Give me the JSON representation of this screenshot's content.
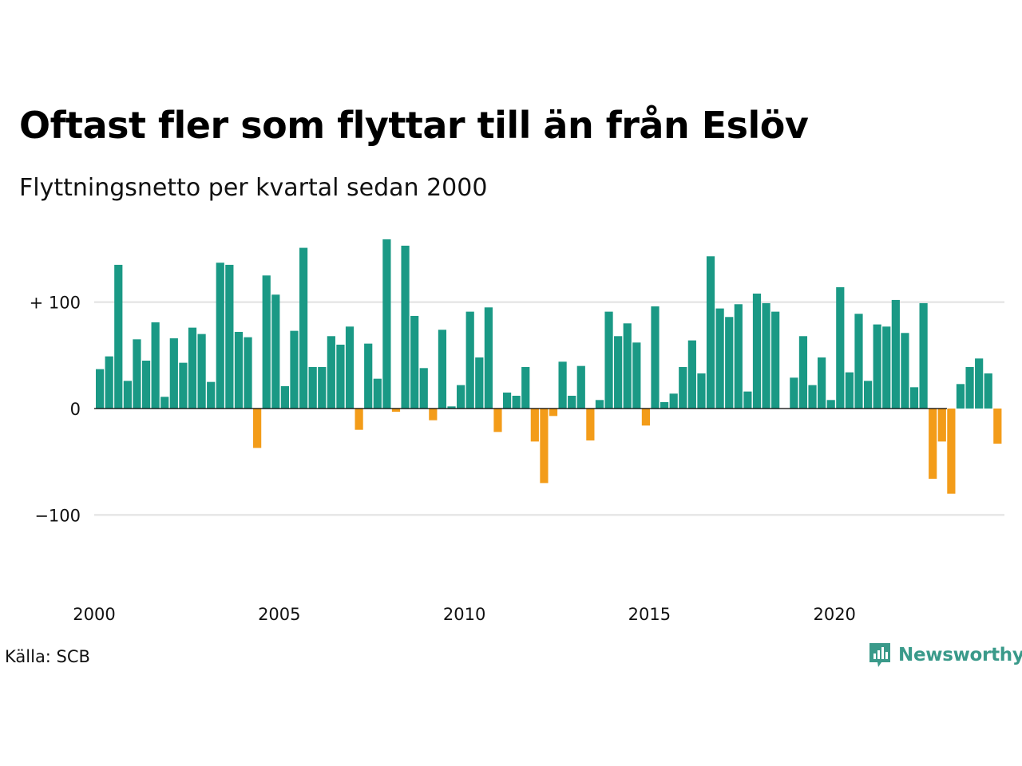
{
  "title": "Oftast fler som flyttar till än från Eslöv",
  "subtitle": "Flyttningsnetto per kvartal sedan 2000",
  "source": "Källa: SCB",
  "brand": "Newsworthy",
  "colors": {
    "positive": "#1a9985",
    "negative": "#f39c19",
    "grid": "#e6e6e6",
    "zero": "#000000"
  },
  "chart_data": {
    "type": "bar",
    "title": "Oftast fler som flyttar till än från Eslöv",
    "subtitle": "Flyttningsnetto per kvartal sedan 2000",
    "xlabel": "",
    "ylabel": "",
    "ylim": [
      -160,
      160
    ],
    "xlim": [
      2000,
      2024.75
    ],
    "grid": true,
    "legend": "none",
    "y_ticks": [
      {
        "value": 100,
        "label": "+ 100"
      },
      {
        "value": 0,
        "label": "0"
      },
      {
        "value": -100,
        "label": "−100"
      }
    ],
    "x_ticks": [
      {
        "value": 2000,
        "label": "2000"
      },
      {
        "value": 2005,
        "label": "2005"
      },
      {
        "value": 2010,
        "label": "2010"
      },
      {
        "value": 2015,
        "label": "2015"
      },
      {
        "value": 2020,
        "label": "2020"
      }
    ],
    "start_year": 2000,
    "periods_per_year": 4,
    "values": [
      37,
      49,
      135,
      26,
      65,
      45,
      81,
      11,
      66,
      43,
      76,
      70,
      25,
      137,
      135,
      72,
      67,
      -37,
      125,
      107,
      21,
      73,
      151,
      39,
      39,
      68,
      60,
      77,
      -20,
      61,
      28,
      159,
      -3,
      153,
      87,
      38,
      -11,
      74,
      2,
      22,
      91,
      48,
      95,
      -22,
      15,
      12,
      39,
      -31,
      -70,
      -7,
      44,
      12,
      40,
      -30,
      8,
      91,
      68,
      80,
      62,
      -16,
      96,
      6,
      14,
      39,
      64,
      33,
      143,
      94,
      86,
      98,
      16,
      108,
      99,
      91,
      0,
      29,
      68,
      22,
      48,
      8,
      114,
      34,
      89,
      26,
      79,
      77,
      102,
      71,
      20,
      99,
      -66,
      -31,
      -80,
      23,
      39,
      47,
      33,
      -33
    ]
  }
}
